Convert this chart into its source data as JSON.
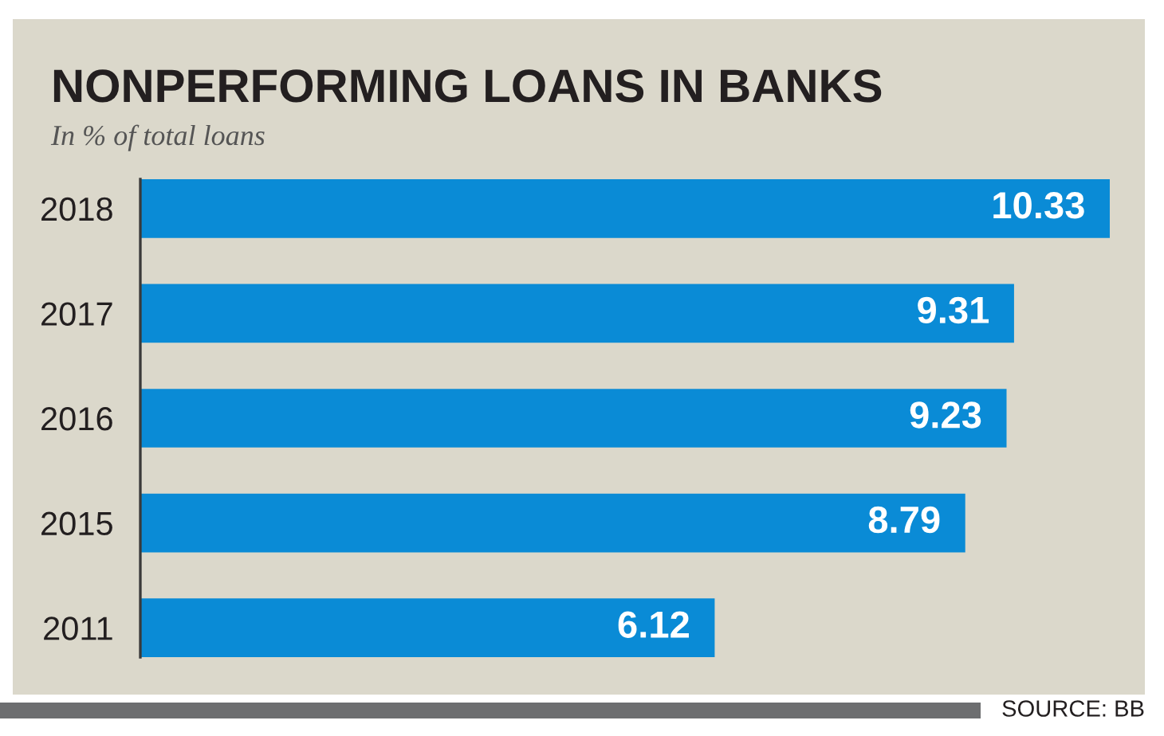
{
  "chart_data": {
    "type": "bar",
    "orientation": "horizontal",
    "title": "NONPERFORMING LOANS IN BANKS",
    "subtitle": "In % of total loans",
    "categories": [
      "2018",
      "2017",
      "2016",
      "2015",
      "2011"
    ],
    "values": [
      10.33,
      9.31,
      9.23,
      8.79,
      6.12
    ],
    "color": "#0a8bd6",
    "data_labels": true,
    "tick_labels": "y",
    "grid": false,
    "annotations": [
      "SOURCE: BB"
    ]
  }
}
